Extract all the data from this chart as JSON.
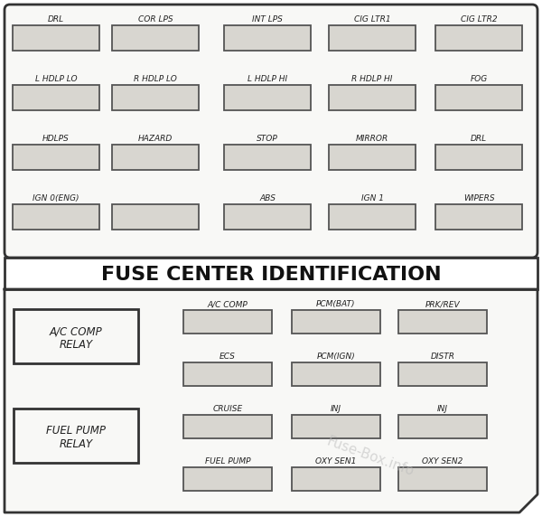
{
  "title": "FUSE CENTER IDENTIFICATION",
  "bg_color": "#ffffff",
  "outer_bg": "#f5f5f3",
  "border_color": "#333333",
  "fuse_fill": "#d8d6d0",
  "fuse_border": "#555555",
  "watermark": "Fuse-Box.info",
  "upper_rows": [
    [
      "DRL",
      "COR LPS",
      "INT LPS",
      "CIG LTR1",
      "CIG LTR2"
    ],
    [
      "L HDLP LO",
      "R HDLP LO",
      "L HDLP HI",
      "R HDLP HI",
      "FOG"
    ],
    [
      "HDLPS",
      "HAZARD",
      "STOP",
      "MIRROR",
      "DRL"
    ],
    [
      "IGN 0(ENG)",
      "",
      "ABS",
      "IGN 1",
      "WIPERS"
    ]
  ],
  "row4_has_fuse2": true,
  "lower_left_relays": [
    "A/C COMP\nRELAY",
    "FUEL PUMP\nRELAY"
  ],
  "lower_right_rows": [
    [
      "A/C COMP",
      "PCM(BAT)",
      "PRK/REV"
    ],
    [
      "ECS",
      "PCM(IGN)",
      "DISTR"
    ],
    [
      "CRUISE",
      "INJ",
      "INJ"
    ],
    [
      "FUEL PUMP",
      "OXY SEN1",
      "OXY SEN2"
    ]
  ]
}
